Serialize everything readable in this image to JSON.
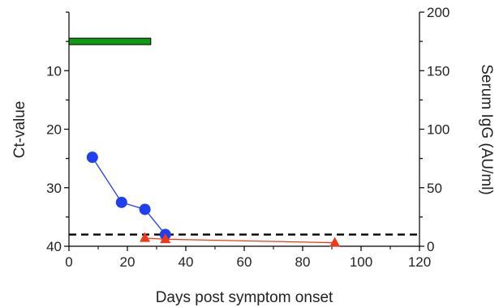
{
  "chart_data": {
    "type": "line",
    "xlabel": "Days post symptom onset",
    "ylabel_left": "Ct-value",
    "ylabel_right": "Serum IgG (AU/ml)",
    "x_range": [
      0,
      120
    ],
    "y_left_range": [
      40,
      0
    ],
    "y_left_inverted": true,
    "y_right_range": [
      0,
      200
    ],
    "x_ticks": [
      "0",
      "20",
      "40",
      "60",
      "80",
      "100",
      "120"
    ],
    "y_left_ticks": [
      "10",
      "20",
      "30",
      "40"
    ],
    "y_right_ticks": [
      "0",
      "50",
      "100",
      "150",
      "200"
    ],
    "grid": false,
    "series": [
      {
        "axis": "left",
        "marker": "circle",
        "color": "#1f3ff0",
        "x": [
          8,
          18,
          26,
          33
        ],
        "y": [
          24.8,
          32.5,
          33.7,
          38
        ]
      },
      {
        "axis": "right",
        "marker": "triangle",
        "color": "#f03a17",
        "x": [
          26,
          33,
          91
        ],
        "y": [
          7,
          6,
          3
        ]
      }
    ],
    "reference_line": {
      "axis": "left",
      "y": 38,
      "style": "dashed",
      "color": "#000000"
    },
    "bar": {
      "axis": "left",
      "x_start": 0,
      "x_end": 28,
      "y": 5,
      "color": "#0f9a12"
    }
  }
}
